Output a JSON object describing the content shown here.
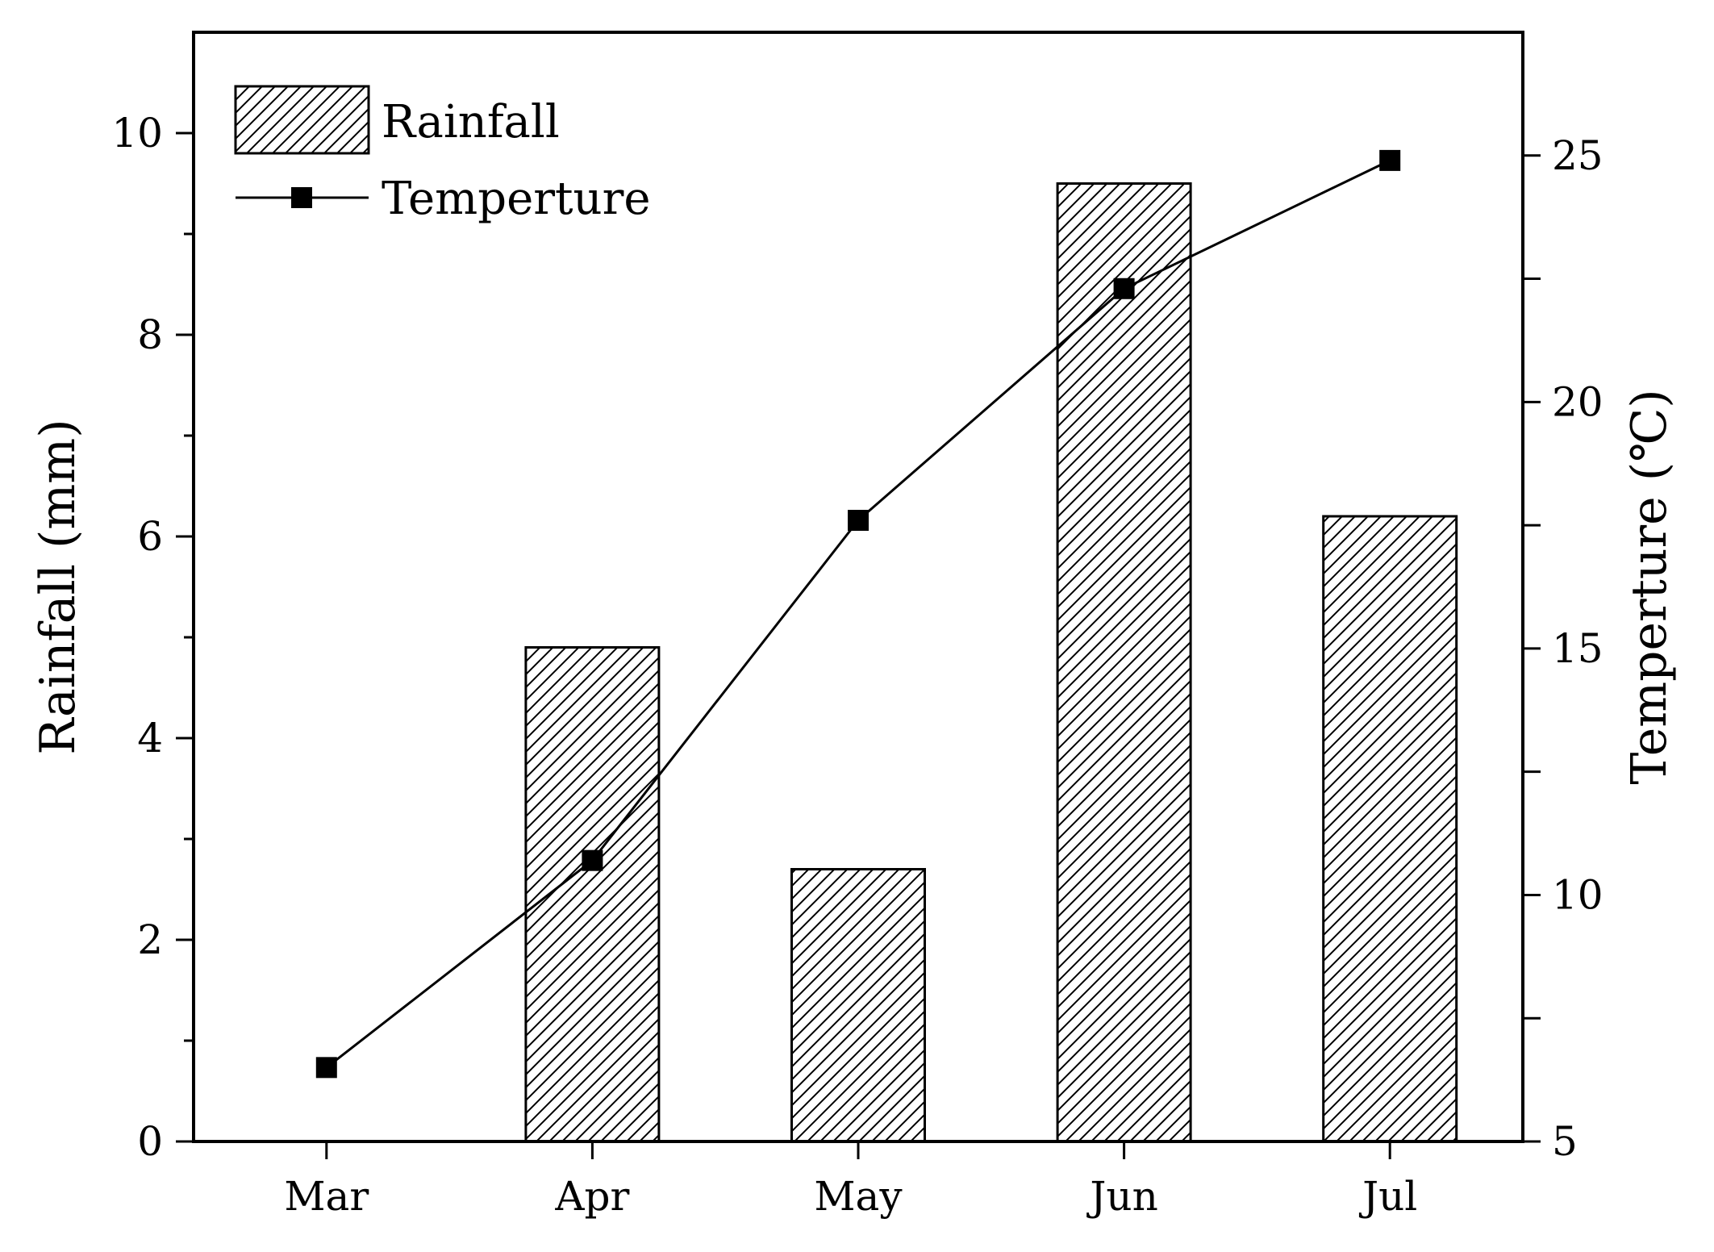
{
  "chart_data": {
    "type": "bar+line",
    "categories": [
      "Mar",
      "Apr",
      "May",
      "Jun",
      "Jul"
    ],
    "series": [
      {
        "name": "Rainfall",
        "kind": "bar",
        "axis": "left",
        "pattern": "diagonal-hatch",
        "values": [
          0,
          4.9,
          2.7,
          9.5,
          6.2
        ]
      },
      {
        "name": "Temperture",
        "kind": "line",
        "axis": "right",
        "marker": "square",
        "values": [
          6.5,
          10.7,
          17.6,
          22.3,
          24.9
        ]
      }
    ],
    "ylabel": "Rainfall (mm)",
    "ylabel_right": "Temperture (℃)",
    "ylim": [
      0,
      11
    ],
    "ylim_right": [
      5,
      27.5
    ],
    "yticks": [
      0,
      2,
      4,
      6,
      8,
      10
    ],
    "yticks_right": [
      5,
      10,
      15,
      20,
      25
    ],
    "grid": false,
    "legend_position": "top-left"
  },
  "colors": {
    "ink": "#000000",
    "background": "#ffffff"
  }
}
